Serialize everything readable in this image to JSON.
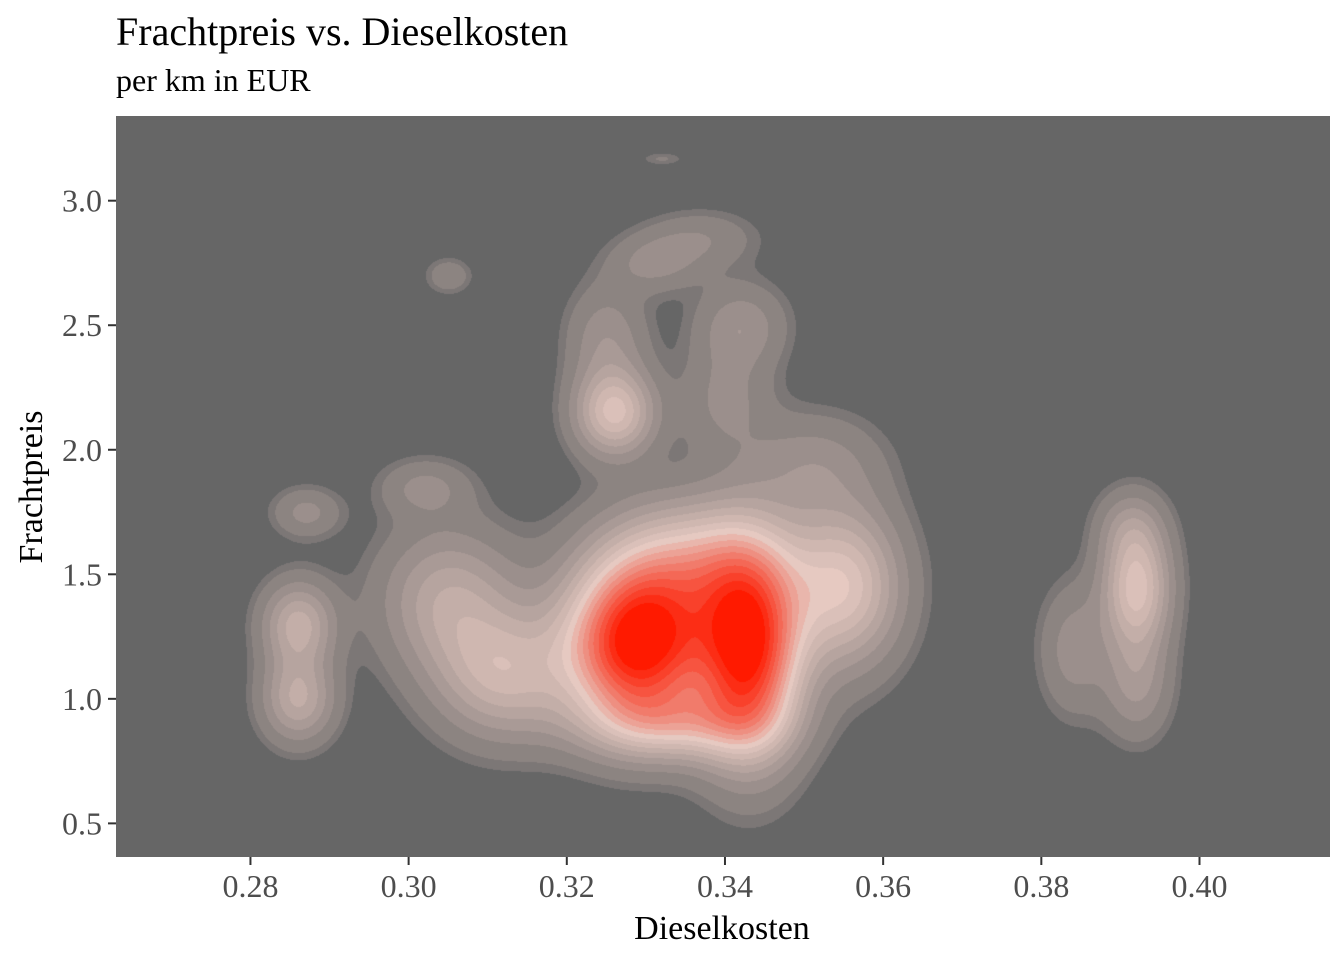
{
  "chart_data": {
    "type": "heatmap",
    "subtype": "2d-density-contour-filled",
    "title": "Frachtpreis vs. Dieselkosten",
    "subtitle": "per km in EUR",
    "xlabel": "Dieselkosten",
    "ylabel": "Frachtpreis",
    "xlim": [
      0.263,
      0.4165
    ],
    "ylim": [
      0.365,
      3.34
    ],
    "xticks": [
      0.28,
      0.3,
      0.32,
      0.34,
      0.36,
      0.38,
      0.4
    ],
    "xtick_labels": [
      "0.28",
      "0.30",
      "0.32",
      "0.34",
      "0.36",
      "0.38",
      "0.40"
    ],
    "yticks": [
      0.5,
      1.0,
      1.5,
      2.0,
      2.5,
      3.0
    ],
    "ytick_labels": [
      "0.5",
      "1.0",
      "1.5",
      "2.0",
      "2.5",
      "3.0"
    ],
    "grid": false,
    "legend": "none",
    "colors": {
      "panel_background": "#666666",
      "low_density": "#666666",
      "mid_density": "#e6c9c1",
      "high_density": "#ff1a00"
    },
    "density_peaks": [
      {
        "x": 0.286,
        "y": 1.3,
        "weight": 0.3,
        "sx": 0.0032,
        "sy": 0.12
      },
      {
        "x": 0.286,
        "y": 1.0,
        "weight": 0.28,
        "sx": 0.0032,
        "sy": 0.12
      },
      {
        "x": 0.287,
        "y": 1.75,
        "weight": 0.13,
        "sx": 0.003,
        "sy": 0.07
      },
      {
        "x": 0.305,
        "y": 1.4,
        "weight": 0.26,
        "sx": 0.006,
        "sy": 0.2
      },
      {
        "x": 0.312,
        "y": 1.1,
        "weight": 0.32,
        "sx": 0.006,
        "sy": 0.18
      },
      {
        "x": 0.302,
        "y": 1.85,
        "weight": 0.12,
        "sx": 0.004,
        "sy": 0.08
      },
      {
        "x": 0.329,
        "y": 1.22,
        "weight": 1.0,
        "sx": 0.0062,
        "sy": 0.22
      },
      {
        "x": 0.343,
        "y": 1.2,
        "weight": 0.92,
        "sx": 0.0045,
        "sy": 0.28
      },
      {
        "x": 0.336,
        "y": 1.55,
        "weight": 0.38,
        "sx": 0.008,
        "sy": 0.18
      },
      {
        "x": 0.355,
        "y": 1.45,
        "weight": 0.42,
        "sx": 0.005,
        "sy": 0.22
      },
      {
        "x": 0.334,
        "y": 0.9,
        "weight": 0.28,
        "sx": 0.008,
        "sy": 0.1
      },
      {
        "x": 0.326,
        "y": 2.15,
        "weight": 0.4,
        "sx": 0.0035,
        "sy": 0.12
      },
      {
        "x": 0.325,
        "y": 2.45,
        "weight": 0.15,
        "sx": 0.0035,
        "sy": 0.15
      },
      {
        "x": 0.331,
        "y": 2.75,
        "weight": 0.12,
        "sx": 0.004,
        "sy": 0.08
      },
      {
        "x": 0.342,
        "y": 2.5,
        "weight": 0.15,
        "sx": 0.004,
        "sy": 0.12
      },
      {
        "x": 0.34,
        "y": 2.2,
        "weight": 0.12,
        "sx": 0.004,
        "sy": 0.15
      },
      {
        "x": 0.337,
        "y": 2.85,
        "weight": 0.1,
        "sx": 0.005,
        "sy": 0.08
      },
      {
        "x": 0.351,
        "y": 1.95,
        "weight": 0.13,
        "sx": 0.006,
        "sy": 0.14
      },
      {
        "x": 0.305,
        "y": 2.7,
        "weight": 0.1,
        "sx": 0.002,
        "sy": 0.05
      },
      {
        "x": 0.332,
        "y": 3.17,
        "weight": 0.06,
        "sx": 0.002,
        "sy": 0.02
      },
      {
        "x": 0.392,
        "y": 1.45,
        "weight": 0.42,
        "sx": 0.003,
        "sy": 0.18
      },
      {
        "x": 0.392,
        "y": 1.05,
        "weight": 0.16,
        "sx": 0.003,
        "sy": 0.15
      },
      {
        "x": 0.384,
        "y": 1.2,
        "weight": 0.14,
        "sx": 0.003,
        "sy": 0.18
      },
      {
        "x": 0.391,
        "y": 1.7,
        "weight": 0.1,
        "sx": 0.003,
        "sy": 0.1
      }
    ]
  }
}
